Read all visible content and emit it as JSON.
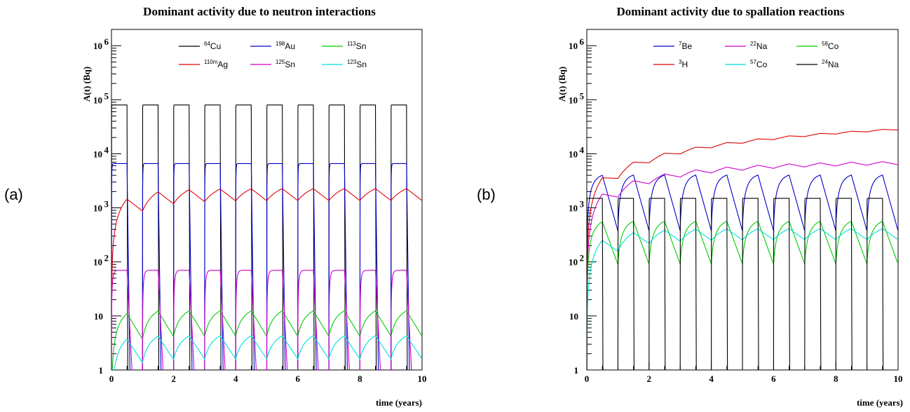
{
  "panel_labels": [
    "(a)",
    "(b)"
  ],
  "chart_data": [
    {
      "type": "line",
      "panel": "(a)",
      "title": "Dominant activity due to neutron interactions",
      "xlabel": "time (years)",
      "ylabel": "A(t) (Bq)",
      "xlim": [
        0,
        10
      ],
      "ylim": [
        1,
        2000000
      ],
      "yscale": "log",
      "x_ticks": [
        0,
        2,
        4,
        6,
        8,
        10
      ],
      "x_tick_labels": [
        "0",
        "2",
        "4",
        "6",
        "8",
        "10"
      ],
      "y_ticks": [
        1,
        10,
        100,
        1000,
        10000,
        100000,
        1000000
      ],
      "y_tick_labels": [
        {
          "base": "1",
          "exp": ""
        },
        {
          "base": "10",
          "exp": ""
        },
        {
          "base": "10",
          "exp": "2"
        },
        {
          "base": "10",
          "exp": "3"
        },
        {
          "base": "10",
          "exp": "4"
        },
        {
          "base": "10",
          "exp": "5"
        },
        {
          "base": "10",
          "exp": "6"
        }
      ],
      "grid": false,
      "legend_position": "top",
      "cycle": {
        "period_years": 1,
        "on_years": 0.5
      },
      "series": [
        {
          "mass": "64",
          "element": "Cu",
          "color": "#000000",
          "shape": "square",
          "on_value": 80000,
          "off_value": 0.001,
          "t_half_years": 0.0015
        },
        {
          "mass": "198",
          "element": "Au",
          "color": "#0000cc",
          "shape": "square",
          "on_value": 6600,
          "off_value": 0.001,
          "t_half_years": 0.0074
        },
        {
          "mass": "113",
          "element": "Sn",
          "color": "#00cc00",
          "shape": "sawtooth",
          "on_value": 11,
          "t_half_years": 0.32
        },
        {
          "mass": "110m",
          "element": "Ag",
          "color": "#e00000",
          "shape": "sawtooth",
          "on_value": 1450,
          "t_half_years": 0.68
        },
        {
          "mass": "125",
          "element": "Sn",
          "color": "#cc00cc",
          "shape": "square",
          "on_value": 70,
          "off_value": 0.001,
          "t_half_years": 0.026
        },
        {
          "mass": "123",
          "element": "Sn",
          "color": "#00dddd",
          "shape": "sawtooth",
          "on_value": 3.7,
          "t_half_years": 0.35
        }
      ]
    },
    {
      "type": "line",
      "panel": "(b)",
      "title": "Dominant activity due to spallation reactions",
      "xlabel": "time (years)",
      "ylabel": "A(t) (Bq)",
      "xlim": [
        0,
        10
      ],
      "ylim": [
        1,
        2000000
      ],
      "yscale": "log",
      "x_ticks": [
        0,
        2,
        4,
        6,
        8,
        10
      ],
      "x_tick_labels": [
        "0",
        "2",
        "4",
        "6",
        "8",
        "10"
      ],
      "y_ticks": [
        1,
        10,
        100,
        1000,
        10000,
        100000,
        1000000
      ],
      "y_tick_labels": [
        {
          "base": "1",
          "exp": ""
        },
        {
          "base": "10",
          "exp": ""
        },
        {
          "base": "10",
          "exp": "2"
        },
        {
          "base": "10",
          "exp": "3"
        },
        {
          "base": "10",
          "exp": "4"
        },
        {
          "base": "10",
          "exp": "5"
        },
        {
          "base": "10",
          "exp": "6"
        }
      ],
      "grid": false,
      "legend_position": "top",
      "cycle": {
        "period_years": 1,
        "on_years": 0.5
      },
      "series": [
        {
          "mass": "7",
          "element": "Be",
          "color": "#0000cc",
          "shape": "sawtooth",
          "on_value": 4000,
          "t_half_years": 0.146
        },
        {
          "mass": "22",
          "element": "Na",
          "color": "#cc00cc",
          "shape": "sawtooth",
          "on_value": 1800,
          "t_half_years": 2.6
        },
        {
          "mass": "58",
          "element": "Co",
          "color": "#00cc00",
          "shape": "sawtooth",
          "on_value": 550,
          "t_half_years": 0.19
        },
        {
          "mass": "3",
          "element": "H",
          "color": "#e00000",
          "shape": "sawtooth",
          "on_value": 3600,
          "t_half_years": 12.3
        },
        {
          "mass": "57",
          "element": "Co",
          "color": "#00dddd",
          "shape": "sawtooth",
          "on_value": 250,
          "t_half_years": 0.74
        },
        {
          "mass": "24",
          "element": "Na",
          "color": "#000000",
          "shape": "square",
          "on_value": 1500,
          "off_value": 0.001,
          "t_half_years": 0.0017
        }
      ]
    }
  ]
}
